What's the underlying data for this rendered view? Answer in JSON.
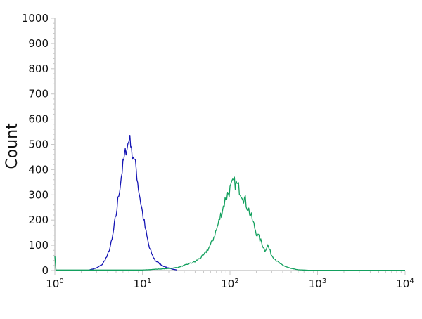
{
  "chart_data": {
    "type": "line",
    "title": "",
    "xlabel": "",
    "ylabel": "Count",
    "xscale": "log",
    "xlim": [
      1,
      10000
    ],
    "ylim": [
      0,
      1000
    ],
    "yticks": [
      "0",
      "100",
      "200",
      "300",
      "400",
      "500",
      "600",
      "700",
      "800",
      "900",
      "1000"
    ],
    "xticks": [
      {
        "base": "10",
        "exp": "0"
      },
      {
        "base": "10",
        "exp": "1"
      },
      {
        "base": "10",
        "exp": "2"
      },
      {
        "base": "10",
        "exp": "3"
      },
      {
        "base": "10",
        "exp": "4"
      }
    ],
    "grid": false,
    "series": [
      {
        "color": "#1414b4",
        "points": [
          [
            2.5,
            3
          ],
          [
            3,
            10
          ],
          [
            3.5,
            25
          ],
          [
            4,
            60
          ],
          [
            4.5,
            120
          ],
          [
            5,
            220
          ],
          [
            5.5,
            330
          ],
          [
            6,
            420
          ],
          [
            6.5,
            480
          ],
          [
            7,
            510
          ],
          [
            7.2,
            540
          ],
          [
            7.5,
            470
          ],
          [
            8,
            450
          ],
          [
            8.5,
            400
          ],
          [
            9,
            330
          ],
          [
            10,
            230
          ],
          [
            11,
            150
          ],
          [
            12,
            90
          ],
          [
            13,
            60
          ],
          [
            14,
            40
          ],
          [
            16,
            25
          ],
          [
            18,
            15
          ],
          [
            20,
            10
          ],
          [
            22,
            5
          ],
          [
            25,
            2
          ]
        ]
      },
      {
        "color": "#13a05e",
        "points": [
          [
            1,
            60
          ],
          [
            1.03,
            2
          ],
          [
            10,
            2
          ],
          [
            20,
            8
          ],
          [
            25,
            12
          ],
          [
            30,
            20
          ],
          [
            40,
            35
          ],
          [
            50,
            60
          ],
          [
            60,
            100
          ],
          [
            70,
            160
          ],
          [
            80,
            230
          ],
          [
            90,
            290
          ],
          [
            100,
            320
          ],
          [
            110,
            350
          ],
          [
            120,
            340
          ],
          [
            140,
            300
          ],
          [
            160,
            250
          ],
          [
            180,
            200
          ],
          [
            200,
            150
          ],
          [
            230,
            110
          ],
          [
            250,
            80
          ],
          [
            270,
            100
          ],
          [
            300,
            60
          ],
          [
            350,
            35
          ],
          [
            400,
            20
          ],
          [
            500,
            8
          ],
          [
            600,
            3
          ],
          [
            800,
            1
          ],
          [
            10000,
            1
          ]
        ]
      }
    ]
  }
}
